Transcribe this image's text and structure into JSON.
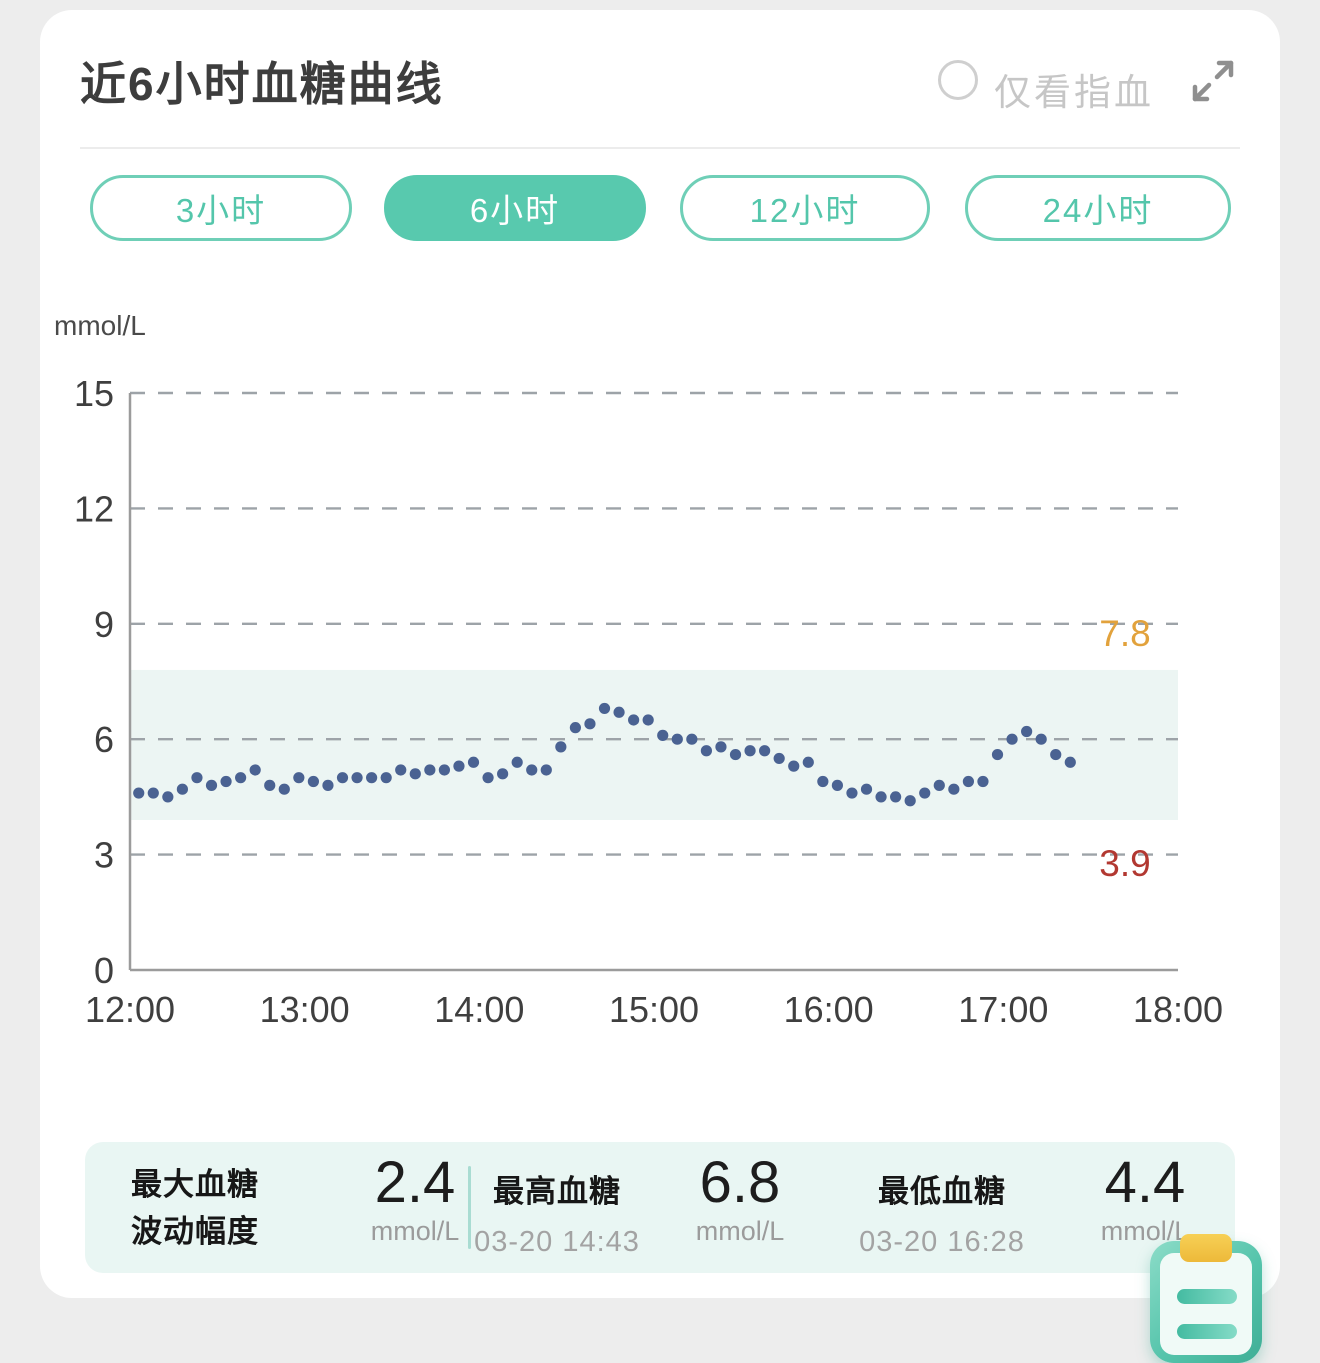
{
  "header": {
    "title": "近6小时血糖曲线",
    "radio_label": "仅看指血"
  },
  "range_tabs": [
    {
      "label": "3小时",
      "selected": false
    },
    {
      "label": "6小时",
      "selected": true
    },
    {
      "label": "12小时",
      "selected": false
    },
    {
      "label": "24小时",
      "selected": false
    }
  ],
  "chart_data": {
    "type": "scatter",
    "title": "近6小时血糖曲线",
    "ylabel": "mmol/L",
    "xlabel": "",
    "ylim": [
      0,
      15
    ],
    "y_ticks": [
      0,
      3,
      6,
      9,
      12,
      15
    ],
    "x_ticks": [
      "12:00",
      "13:00",
      "14:00",
      "15:00",
      "16:00",
      "17:00",
      "18:00"
    ],
    "xlim_minutes": [
      0,
      360
    ],
    "grid": "dashed-horizontal",
    "legend": "none",
    "target_range": {
      "low": 3.9,
      "high": 7.8,
      "low_label": "3.9",
      "high_label": "7.8"
    },
    "colors": {
      "band": "#ecf5f3",
      "dot": "#4a6292",
      "grid": "#9da3a8",
      "axis": "#9b9b9b",
      "tick_text": "#3f3f3f",
      "high_label": "#e2a23c",
      "low_label": "#b23831"
    },
    "series": [
      {
        "name": "血糖",
        "color": "#4a6292",
        "points": [
          [
            "12:03",
            4.6
          ],
          [
            "12:08",
            4.6
          ],
          [
            "12:13",
            4.5
          ],
          [
            "12:18",
            4.7
          ],
          [
            "12:23",
            5.0
          ],
          [
            "12:28",
            4.8
          ],
          [
            "12:33",
            4.9
          ],
          [
            "12:38",
            5.0
          ],
          [
            "12:43",
            5.2
          ],
          [
            "12:48",
            4.8
          ],
          [
            "12:53",
            4.7
          ],
          [
            "12:58",
            5.0
          ],
          [
            "13:03",
            4.9
          ],
          [
            "13:08",
            4.8
          ],
          [
            "13:13",
            5.0
          ],
          [
            "13:18",
            5.0
          ],
          [
            "13:23",
            5.0
          ],
          [
            "13:28",
            5.0
          ],
          [
            "13:33",
            5.2
          ],
          [
            "13:38",
            5.1
          ],
          [
            "13:43",
            5.2
          ],
          [
            "13:48",
            5.2
          ],
          [
            "13:53",
            5.3
          ],
          [
            "13:58",
            5.4
          ],
          [
            "14:03",
            5.0
          ],
          [
            "14:08",
            5.1
          ],
          [
            "14:13",
            5.4
          ],
          [
            "14:18",
            5.2
          ],
          [
            "14:23",
            5.2
          ],
          [
            "14:28",
            5.8
          ],
          [
            "14:33",
            6.3
          ],
          [
            "14:38",
            6.4
          ],
          [
            "14:43",
            6.8
          ],
          [
            "14:48",
            6.7
          ],
          [
            "14:53",
            6.5
          ],
          [
            "14:58",
            6.5
          ],
          [
            "15:03",
            6.1
          ],
          [
            "15:08",
            6.0
          ],
          [
            "15:13",
            6.0
          ],
          [
            "15:18",
            5.7
          ],
          [
            "15:23",
            5.8
          ],
          [
            "15:28",
            5.6
          ],
          [
            "15:33",
            5.7
          ],
          [
            "15:38",
            5.7
          ],
          [
            "15:43",
            5.5
          ],
          [
            "15:48",
            5.3
          ],
          [
            "15:53",
            5.4
          ],
          [
            "15:58",
            4.9
          ],
          [
            "16:03",
            4.8
          ],
          [
            "16:08",
            4.6
          ],
          [
            "16:13",
            4.7
          ],
          [
            "16:18",
            4.5
          ],
          [
            "16:23",
            4.5
          ],
          [
            "16:28",
            4.4
          ],
          [
            "16:33",
            4.6
          ],
          [
            "16:38",
            4.8
          ],
          [
            "16:43",
            4.7
          ],
          [
            "16:48",
            4.9
          ],
          [
            "16:53",
            4.9
          ],
          [
            "16:58",
            5.6
          ],
          [
            "17:03",
            6.0
          ],
          [
            "17:08",
            6.2
          ],
          [
            "17:13",
            6.0
          ],
          [
            "17:18",
            5.6
          ],
          [
            "17:23",
            5.4
          ]
        ]
      }
    ]
  },
  "stats": {
    "items": [
      {
        "label_lines": [
          "最大血糖",
          "波动幅度"
        ],
        "value": "2.4",
        "unit": "mmol/L"
      },
      {
        "label_lines": [
          "最高血糖"
        ],
        "sub": "03-20 14:43",
        "value": "6.8",
        "unit": "mmol/L"
      },
      {
        "label_lines": [
          "最低血糖"
        ],
        "sub": "03-20 16:28",
        "value": "4.4",
        "unit": "mmol/L"
      }
    ]
  },
  "icons": {
    "expand": "expand-arrows",
    "fab": "clipboard-report"
  }
}
